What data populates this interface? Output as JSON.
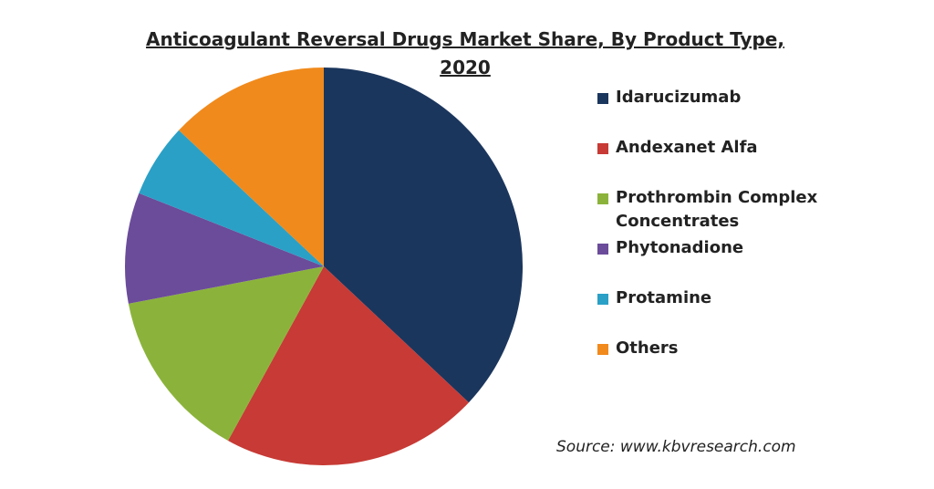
{
  "chart_data": {
    "type": "pie",
    "title": "Anticoagulant Reversal Drugs Market Share, By Product Type, 2020",
    "categories": [
      "Idarucizumab",
      "Andexanet Alfa",
      "Prothrombin Complex Concentrates",
      "Phytonadione",
      "Protamine",
      "Others"
    ],
    "values": [
      37,
      21,
      14,
      9,
      6,
      13
    ],
    "colors": [
      "#1b365d",
      "#c73a35",
      "#8bb33b",
      "#6b4c9a",
      "#2aa0c6",
      "#f08a1c"
    ],
    "legend": "right",
    "annotation": "Source: www.kbvresearch.com"
  }
}
